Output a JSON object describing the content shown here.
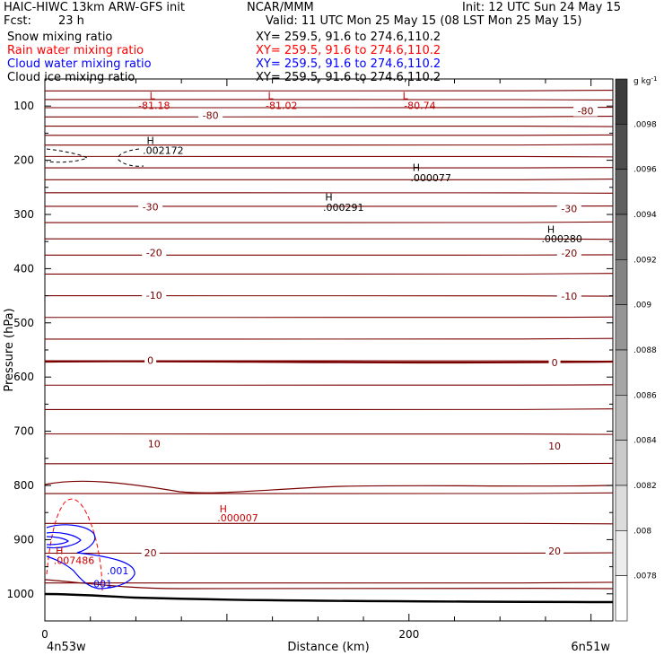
{
  "header": {
    "left_line1": "HAIC-HIWC 13km ARW-GFS init",
    "center_line1": "NCAR/MMM",
    "right_line1": "Init: 12 UTC Sun 24 May 15",
    "fcst_label": "Fcst:",
    "fcst_value": "23 h",
    "valid": "Valid: 11 UTC Mon 25 May 15 (08 LST Mon 25 May 15)",
    "fields": [
      {
        "name": "Snow mixing ratio",
        "xy": "XY= 259.5, 91.6 to 274.6,110.2",
        "color": "#000000"
      },
      {
        "name": "Rain water mixing ratio",
        "xy": "XY= 259.5, 91.6 to 274.6,110.2",
        "color": "#ff0000"
      },
      {
        "name": "Cloud water mixing ratio",
        "xy": "XY= 259.5, 91.6 to 274.6,110.2",
        "color": "#0000ff"
      },
      {
        "name": "Cloud ice mixing ratio",
        "xy": "XY= 259.5, 91.6 to 274.6,110.2",
        "color": "#000000"
      }
    ]
  },
  "chart_data": {
    "type": "cross-section",
    "xlabel": "Distance (km)",
    "ylabel": "Pressure (hPa)",
    "x_ticks": [
      0,
      200
    ],
    "x_range_km": [
      0,
      312
    ],
    "y_ticks": [
      100,
      200,
      300,
      400,
      500,
      600,
      700,
      800,
      900,
      1000
    ],
    "y_range_hPa": [
      50,
      1050
    ],
    "x_endpoint_left": "4n53w",
    "x_endpoint_right": "6n51w",
    "colorbar": {
      "unit": "g kg",
      "unit_exp": "-1",
      "labels": [
        ".0098",
        ".0096",
        ".0094",
        ".0092",
        ".009",
        ".0088",
        ".0086",
        ".0084",
        ".0082",
        ".008",
        ".0078"
      ]
    },
    "temperature_labels": [
      {
        "text": "-80",
        "x_km": 91,
        "p": 117
      },
      {
        "text": "-80",
        "x_km": 297,
        "p": 109
      },
      {
        "text": "-30",
        "x_km": 58,
        "p": 286
      },
      {
        "text": "-30",
        "x_km": 288,
        "p": 289
      },
      {
        "text": "-20",
        "x_km": 60,
        "p": 370
      },
      {
        "text": "-20",
        "x_km": 288,
        "p": 371
      },
      {
        "text": "-10",
        "x_km": 60,
        "p": 449
      },
      {
        "text": "-10",
        "x_km": 288,
        "p": 451
      },
      {
        "text": "0",
        "x_km": 58,
        "p": 569
      },
      {
        "text": "0",
        "x_km": 280,
        "p": 573
      },
      {
        "text": "10",
        "x_km": 60,
        "p": 723
      },
      {
        "text": "10",
        "x_km": 280,
        "p": 727
      },
      {
        "text": "20",
        "x_km": 58,
        "p": 924
      },
      {
        "text": "20",
        "x_km": 280,
        "p": 921
      }
    ],
    "extrema_labels": [
      {
        "text": "L",
        "x_km": 59,
        "p": 81,
        "color": "#cc0000"
      },
      {
        "text": "-81.18",
        "x_km": 60,
        "p": 99,
        "color": "#cc0000"
      },
      {
        "text": "L",
        "x_km": 124,
        "p": 81,
        "color": "#cc0000"
      },
      {
        "text": "-81.02",
        "x_km": 130,
        "p": 99,
        "color": "#cc0000"
      },
      {
        "text": "L",
        "x_km": 198,
        "p": 81,
        "color": "#cc0000"
      },
      {
        "text": "-80.74",
        "x_km": 206,
        "p": 99,
        "color": "#cc0000"
      },
      {
        "text": "H",
        "x_km": 58,
        "p": 163,
        "color": "#000000"
      },
      {
        "text": ".002172",
        "x_km": 65,
        "p": 182,
        "color": "#000000"
      },
      {
        "text": "H",
        "x_km": 204,
        "p": 213,
        "color": "#000000"
      },
      {
        "text": ".000077",
        "x_km": 212,
        "p": 232,
        "color": "#000000"
      },
      {
        "text": "H",
        "x_km": 156,
        "p": 268,
        "color": "#000000"
      },
      {
        "text": ".000291",
        "x_km": 164,
        "p": 287,
        "color": "#000000"
      },
      {
        "text": "H",
        "x_km": 278,
        "p": 327,
        "color": "#000000"
      },
      {
        "text": ".000280",
        "x_km": 284,
        "p": 345,
        "color": "#000000"
      },
      {
        "text": "H",
        "x_km": 98,
        "p": 843,
        "color": "#cc0000"
      },
      {
        "text": ".000007",
        "x_km": 106,
        "p": 860,
        "color": "#cc0000"
      },
      {
        "text": "H",
        "x_km": 8,
        "p": 920,
        "color": "#cc0000"
      },
      {
        "text": ".007486",
        "x_km": 16,
        "p": 938,
        "color": "#cc0000"
      },
      {
        "text": ".001",
        "x_km": 40,
        "p": 957,
        "color": "#0000ff"
      },
      {
        "text": ".001",
        "x_km": 31,
        "p": 981,
        "color": "#0000ff"
      }
    ],
    "temperature_isotherms_p": [
      72,
      88,
      103,
      120,
      137,
      154,
      172,
      193,
      214,
      236,
      260,
      285,
      315,
      345,
      375,
      410,
      450,
      490,
      530,
      570,
      615,
      660,
      705,
      760,
      815,
      870,
      925,
      980
    ]
  }
}
